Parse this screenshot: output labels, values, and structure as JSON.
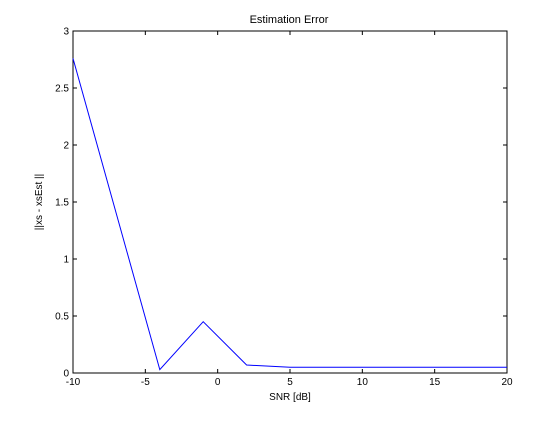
{
  "chart_data": {
    "type": "line",
    "title": "Estimation Error",
    "xlabel": "SNR [dB]",
    "ylabel": "||xs - xsEst ||",
    "xlim": [
      -10,
      20
    ],
    "ylim": [
      0,
      3
    ],
    "xticks": [
      -10,
      -5,
      0,
      5,
      10,
      15,
      20
    ],
    "yticks": [
      0,
      0.5,
      1,
      1.5,
      2,
      2.5,
      3
    ],
    "grid": false,
    "series": [
      {
        "color": "#0000ff",
        "x": [
          -10,
          -4,
          -1,
          2,
          5,
          8,
          11,
          14,
          17,
          20
        ],
        "y": [
          2.76,
          0.03,
          0.45,
          0.07,
          0.05,
          0.05,
          0.05,
          0.05,
          0.05,
          0.05
        ]
      }
    ]
  }
}
